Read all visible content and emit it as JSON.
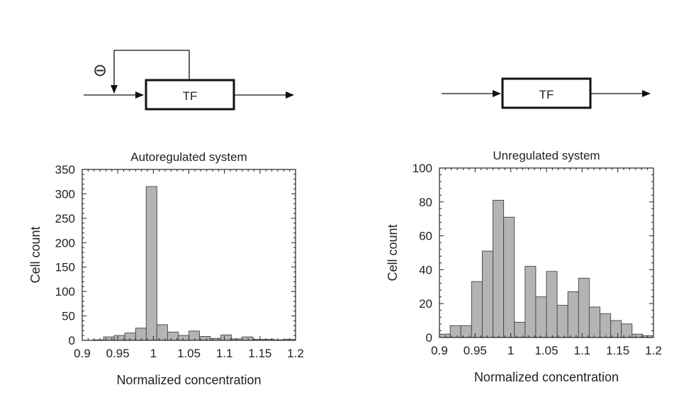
{
  "diagrams": [
    {
      "box_label": "TF",
      "feedback_symbol": "⊖"
    },
    {
      "box_label": "TF"
    }
  ],
  "chart_data": [
    {
      "type": "bar",
      "title": "Autoregulated system",
      "xlabel": "Normalized concentration",
      "ylabel": "Cell count",
      "xlim": [
        0.9,
        1.2
      ],
      "ylim": [
        0,
        350
      ],
      "x_ticks": [
        "0.9",
        "0.95",
        "1",
        "1.05",
        "1.1",
        "1.15",
        "1.2"
      ],
      "y_ticks": [
        "0",
        "50",
        "100",
        "150",
        "200",
        "250",
        "300",
        "350"
      ],
      "bin_width": 0.015,
      "bin_starts": [
        0.9,
        0.915,
        0.93,
        0.945,
        0.96,
        0.975,
        0.99,
        1.005,
        1.02,
        1.035,
        1.05,
        1.065,
        1.08,
        1.095,
        1.11,
        1.125,
        1.14,
        1.155,
        1.17,
        1.185
      ],
      "values": [
        0,
        1,
        7,
        10,
        15,
        25,
        315,
        32,
        17,
        10,
        19,
        8,
        4,
        11,
        3,
        7,
        2,
        2,
        1,
        2
      ],
      "bar_color": "#b4b4b4",
      "grid": false
    },
    {
      "type": "bar",
      "title": "Unregulated system",
      "xlabel": "Normalized concentration",
      "ylabel": "Cell count",
      "xlim": [
        0.9,
        1.2
      ],
      "ylim": [
        0,
        100
      ],
      "x_ticks": [
        "0.9",
        "0.95",
        "1",
        "1.05",
        "1.1",
        "1.15",
        "1.2"
      ],
      "y_ticks": [
        "0",
        "20",
        "40",
        "60",
        "80",
        "100"
      ],
      "bin_width": 0.015,
      "bin_starts": [
        0.9,
        0.915,
        0.93,
        0.945,
        0.96,
        0.975,
        0.99,
        1.005,
        1.02,
        1.035,
        1.05,
        1.065,
        1.08,
        1.095,
        1.11,
        1.125,
        1.14,
        1.155,
        1.17,
        1.185
      ],
      "values": [
        2,
        7,
        7,
        33,
        51,
        81,
        71,
        9,
        42,
        24,
        39,
        19,
        27,
        35,
        18,
        14,
        10,
        8,
        2,
        1
      ],
      "bar_color": "#b4b4b4",
      "grid": false
    }
  ]
}
